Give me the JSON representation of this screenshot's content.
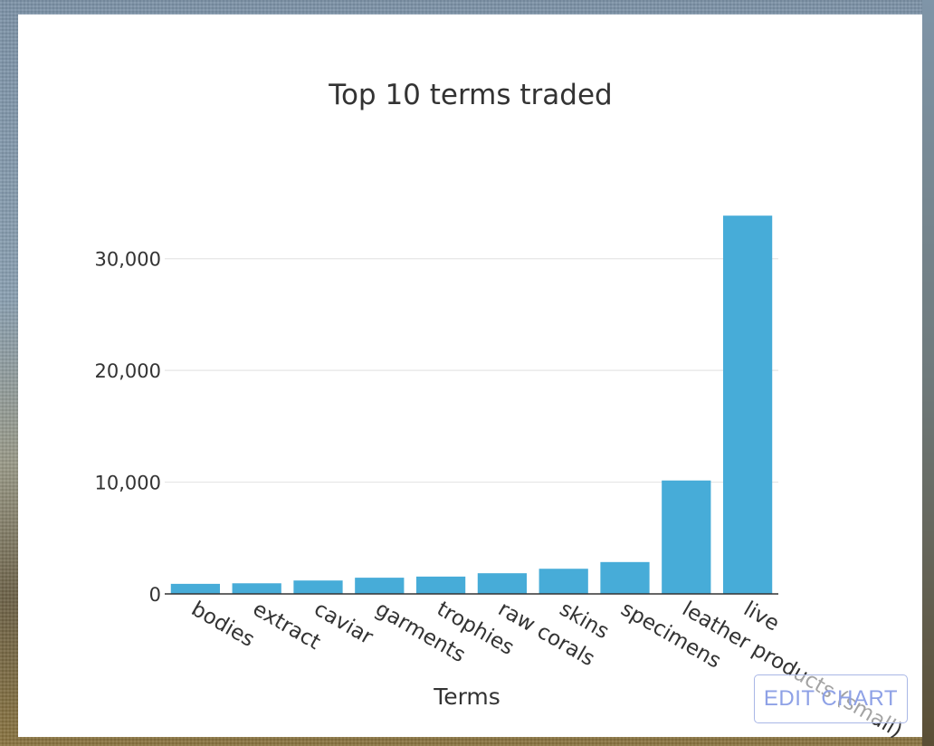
{
  "chart_data": {
    "type": "bar",
    "title": "Top 10 terms traded",
    "xlabel": "Terms",
    "ylabel": "",
    "categories": [
      "bodies",
      "extract",
      "caviar",
      "garments",
      "trophies",
      "raw corals",
      "skins",
      "specimens",
      "leather products (small)",
      "live"
    ],
    "values": [
      900,
      950,
      1200,
      1450,
      1550,
      1850,
      2250,
      2850,
      10150,
      33850
    ],
    "ylim": [
      0,
      35000
    ],
    "yticks": [
      0,
      10000,
      20000,
      30000
    ],
    "ytick_labels": [
      "0",
      "10,000",
      "20,000",
      "30,000"
    ],
    "grid": true,
    "legend": "none",
    "colors": {
      "bar": "#47acd8",
      "grid": "#e6e6e6",
      "text": "#333333",
      "axis": "#333333"
    }
  },
  "ui": {
    "edit_chart_label": "EDIT CHART"
  }
}
